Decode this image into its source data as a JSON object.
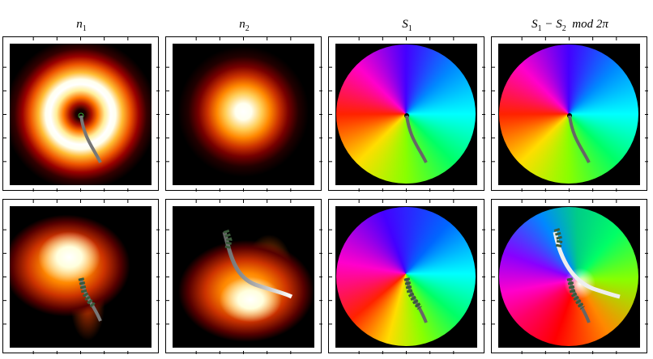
{
  "columns": [
    {
      "title": [
        {
          "text": "n"
        },
        {
          "text": "1",
          "sub": true
        }
      ]
    },
    {
      "title": [
        {
          "text": "n"
        },
        {
          "text": "2",
          "sub": true
        }
      ]
    },
    {
      "title": [
        {
          "text": "S"
        },
        {
          "text": "1",
          "sub": true
        }
      ]
    },
    {
      "title": [
        {
          "text": "S"
        },
        {
          "text": "1",
          "sub": true
        },
        {
          "text": " − S"
        },
        {
          "text": "2",
          "sub": true
        },
        {
          "text": "  mod 2π"
        }
      ]
    }
  ]
}
